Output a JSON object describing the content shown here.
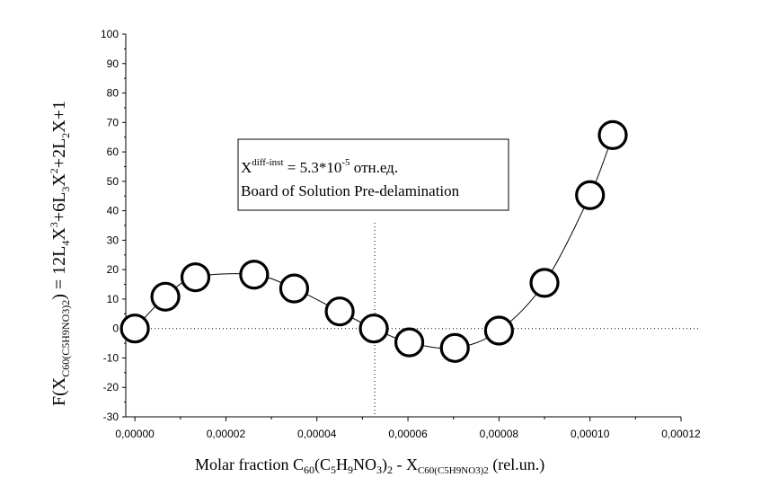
{
  "chart_data": {
    "type": "scatter",
    "x_ticks": [
      "0,00000",
      "0,00002",
      "0,00004",
      "0,00006",
      "0,00008",
      "0,00010",
      "0,00012"
    ],
    "y_ticks": [
      -30,
      -20,
      -10,
      0,
      10,
      20,
      30,
      40,
      50,
      60,
      70,
      80,
      90,
      100
    ],
    "xlim": [
      -2e-06,
      0.00012
    ],
    "ylim": [
      -30,
      100
    ],
    "grid": false,
    "reference_lines": {
      "y": 0,
      "x": 5.27e-05
    },
    "points": {
      "x": [
        0.0,
        6.7e-06,
        1.33e-05,
        2.62e-05,
        3.5e-05,
        4.5e-05,
        5.25e-05,
        6.03e-05,
        7.03e-05,
        8e-05,
        9e-05,
        0.0001,
        0.000105
      ],
      "y": [
        0.0,
        10.8,
        17.4,
        18.3,
        13.6,
        5.8,
        0.0,
        -4.7,
        -6.6,
        -0.7,
        15.5,
        45.3,
        65.7
      ]
    },
    "fit_curve": {
      "x_from": 0.0,
      "x_to": 0.000105
    },
    "annotation": {
      "x_symbol": "X",
      "superscript": "diff-inst",
      "eq": " = 5.3*10",
      "exp": "-5",
      "unit": " отн.ед.",
      "line2": "Board of Solution Pre-delamination"
    },
    "xlabel": {
      "a": "Molar fraction C",
      "a_sub": "60",
      "b": "(C",
      "b_sub": "5",
      "c": "H",
      "c_sub": "9",
      "d": "NO",
      "d_sub": "3",
      "e": ")",
      "e_sub": "2",
      "f": "  - X",
      "f_sub": "C60(C5H9NO3)2",
      "g": " (rel.un.)"
    },
    "ylabel": {
      "a": "F(X",
      "a_sub": "C60(C5H9NO3)2",
      "b": ") = 12L",
      "b_sub": "4",
      "c": "X",
      "c_sup": "3",
      "d": "+6L",
      "d_sub": "3",
      "e": "X",
      "e_sup": "2",
      "f": "+2L",
      "f_sub": "2",
      "g": "X+1"
    }
  }
}
